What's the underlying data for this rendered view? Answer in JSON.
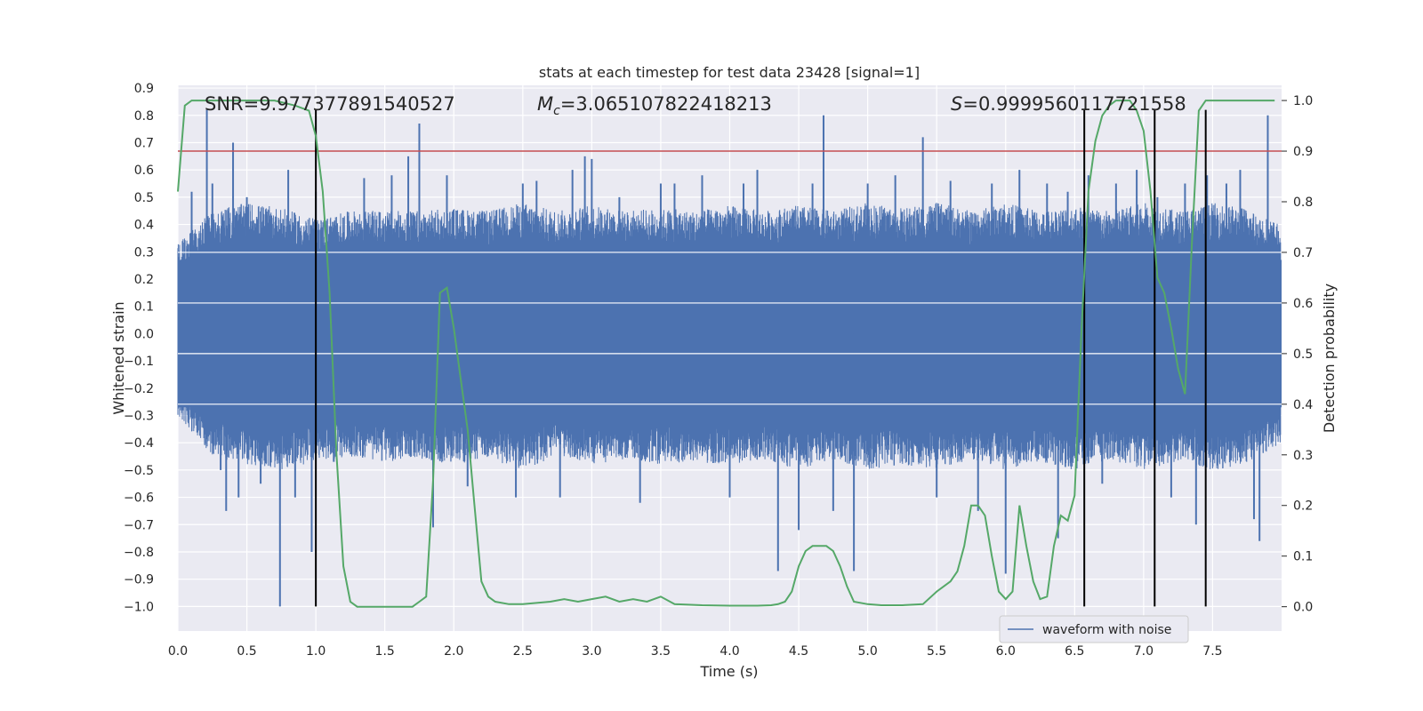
{
  "chart_data": {
    "type": "line",
    "title": "stats at each timestep for test data 23428 [signal=1]",
    "xlabel": "Time (s)",
    "ylabel": "Whitened strain",
    "y2label": "Detection probability",
    "xlim": [
      0.0,
      8.0
    ],
    "ylim": [
      -1.09,
      0.91
    ],
    "y2lim": [
      -0.048,
      1.03
    ],
    "x_ticks": [
      0.0,
      0.5,
      1.0,
      1.5,
      2.0,
      2.5,
      3.0,
      3.5,
      4.0,
      4.5,
      5.0,
      5.5,
      6.0,
      6.5,
      7.0,
      7.5
    ],
    "x_tick_labels": [
      "0.0",
      "0.5",
      "1.0",
      "1.5",
      "2.0",
      "2.5",
      "3.0",
      "3.5",
      "4.0",
      "4.5",
      "5.0",
      "5.5",
      "6.0",
      "6.5",
      "7.0",
      "7.5"
    ],
    "y_ticks": [
      0.9,
      0.8,
      0.7,
      0.6,
      0.5,
      0.4,
      0.3,
      0.2,
      0.1,
      0.0,
      -0.1,
      -0.2,
      -0.3,
      -0.4,
      -0.5,
      -0.6,
      -0.7,
      -0.8,
      -0.9,
      -1.0
    ],
    "y_tick_labels": [
      "0.9",
      "0.8",
      "0.7",
      "0.6",
      "0.5",
      "0.4",
      "0.3",
      "0.2",
      "0.1",
      "0.0",
      "−0.1",
      "−0.2",
      "−0.3",
      "−0.4",
      "−0.5",
      "−0.6",
      "−0.7",
      "−0.8",
      "−0.9",
      "−1.0"
    ],
    "y2_ticks": [
      1.0,
      0.9,
      0.8,
      0.7,
      0.6,
      0.5,
      0.4,
      0.3,
      0.2,
      0.1,
      0.0
    ],
    "y2_tick_labels": [
      "1.0",
      "0.9",
      "0.8",
      "0.7",
      "0.6",
      "0.5",
      "0.4",
      "0.3",
      "0.2",
      "0.1",
      "0.0"
    ],
    "grid": true,
    "legend": {
      "placement": "lower-right",
      "entries": [
        {
          "label": "waveform with noise",
          "color": "#4c72b0"
        }
      ]
    },
    "annotations": {
      "snr": "SNR=9.977377891540527",
      "mc_symbol": "M",
      "mc_sub": "c",
      "mc_value": "=3.065107822418213",
      "s_symbol": "S",
      "s_value": "=0.9999560117721558"
    },
    "threshold": {
      "axis": "y2",
      "value": 0.9,
      "color": "#c44e52"
    },
    "vertical_lines": [
      1.0,
      6.57,
      7.08,
      7.45
    ],
    "vertical_line_range": [
      -1.0,
      0.82
    ],
    "strain_series": {
      "name": "waveform with noise",
      "color": "#4c72b0",
      "envelope": {
        "x": [
          0.0,
          0.25,
          0.5,
          0.75,
          1.0,
          1.25,
          1.5,
          1.75,
          2.0,
          2.25,
          2.5,
          2.75,
          3.0,
          3.25,
          3.5,
          3.75,
          4.0,
          4.25,
          4.5,
          4.75,
          5.0,
          5.25,
          5.5,
          5.75,
          6.0,
          6.25,
          6.5,
          6.75,
          7.0,
          7.25,
          7.5,
          7.75,
          8.0
        ],
        "amp_hi": [
          0.33,
          0.45,
          0.48,
          0.46,
          0.42,
          0.45,
          0.45,
          0.45,
          0.46,
          0.45,
          0.48,
          0.45,
          0.47,
          0.45,
          0.46,
          0.45,
          0.47,
          0.45,
          0.47,
          0.45,
          0.48,
          0.46,
          0.48,
          0.45,
          0.48,
          0.45,
          0.47,
          0.45,
          0.48,
          0.45,
          0.48,
          0.46,
          0.4
        ],
        "amp_lo": [
          -0.3,
          -0.45,
          -0.48,
          -0.5,
          -0.47,
          -0.45,
          -0.47,
          -0.46,
          -0.48,
          -0.46,
          -0.5,
          -0.45,
          -0.48,
          -0.46,
          -0.48,
          -0.47,
          -0.48,
          -0.46,
          -0.5,
          -0.46,
          -0.5,
          -0.48,
          -0.5,
          -0.46,
          -0.5,
          -0.47,
          -0.5,
          -0.46,
          -0.5,
          -0.47,
          -0.5,
          -0.48,
          -0.4
        ]
      },
      "spikes": [
        [
          0.1,
          0.52
        ],
        [
          0.21,
          0.82
        ],
        [
          0.25,
          0.55
        ],
        [
          0.31,
          -0.5
        ],
        [
          0.35,
          -0.65
        ],
        [
          0.4,
          0.7
        ],
        [
          0.44,
          -0.6
        ],
        [
          0.5,
          0.5
        ],
        [
          0.6,
          -0.55
        ],
        [
          0.74,
          -1.0
        ],
        [
          0.8,
          0.6
        ],
        [
          0.85,
          -0.6
        ],
        [
          0.97,
          -0.8
        ],
        [
          1.0,
          0.52
        ],
        [
          1.13,
          -0.47
        ],
        [
          1.35,
          0.57
        ],
        [
          1.55,
          0.58
        ],
        [
          1.67,
          0.65
        ],
        [
          1.75,
          0.77
        ],
        [
          1.85,
          -0.71
        ],
        [
          1.95,
          0.58
        ],
        [
          2.1,
          -0.56
        ],
        [
          2.45,
          -0.6
        ],
        [
          2.5,
          0.55
        ],
        [
          2.6,
          0.56
        ],
        [
          2.77,
          -0.6
        ],
        [
          2.86,
          0.6
        ],
        [
          2.95,
          0.65
        ],
        [
          3.0,
          0.64
        ],
        [
          3.2,
          0.5
        ],
        [
          3.35,
          -0.62
        ],
        [
          3.5,
          0.55
        ],
        [
          3.6,
          0.55
        ],
        [
          3.8,
          0.58
        ],
        [
          4.0,
          -0.6
        ],
        [
          4.1,
          0.55
        ],
        [
          4.2,
          0.6
        ],
        [
          4.35,
          -0.87
        ],
        [
          4.5,
          -0.72
        ],
        [
          4.6,
          0.55
        ],
        [
          4.68,
          0.8
        ],
        [
          4.75,
          -0.65
        ],
        [
          4.9,
          -0.87
        ],
        [
          5.0,
          0.55
        ],
        [
          5.2,
          0.58
        ],
        [
          5.4,
          0.72
        ],
        [
          5.5,
          -0.6
        ],
        [
          5.6,
          0.56
        ],
        [
          5.8,
          -0.65
        ],
        [
          5.9,
          0.55
        ],
        [
          6.0,
          -0.88
        ],
        [
          6.1,
          0.6
        ],
        [
          6.3,
          0.55
        ],
        [
          6.38,
          -0.75
        ],
        [
          6.45,
          0.52
        ],
        [
          6.6,
          0.58
        ],
        [
          6.7,
          -0.55
        ],
        [
          6.8,
          0.55
        ],
        [
          6.95,
          0.6
        ],
        [
          7.1,
          0.5
        ],
        [
          7.2,
          -0.6
        ],
        [
          7.3,
          0.55
        ],
        [
          7.38,
          -0.7
        ],
        [
          7.46,
          0.58
        ],
        [
          7.6,
          0.55
        ],
        [
          7.7,
          0.6
        ],
        [
          7.8,
          -0.68
        ],
        [
          7.84,
          -0.76
        ],
        [
          7.9,
          0.8
        ]
      ]
    },
    "probability_series": {
      "name": "detection probability",
      "axis": "y2",
      "color": "#55a868",
      "x": [
        0.0,
        0.05,
        0.1,
        0.2,
        0.3,
        0.5,
        0.7,
        0.85,
        0.95,
        1.0,
        1.05,
        1.1,
        1.15,
        1.2,
        1.25,
        1.3,
        1.5,
        1.7,
        1.75,
        1.8,
        1.85,
        1.9,
        1.95,
        2.0,
        2.05,
        2.1,
        2.15,
        2.2,
        2.25,
        2.3,
        2.4,
        2.5,
        2.7,
        2.8,
        2.9,
        3.0,
        3.1,
        3.2,
        3.3,
        3.4,
        3.5,
        3.6,
        3.8,
        4.0,
        4.2,
        4.3,
        4.35,
        4.4,
        4.45,
        4.5,
        4.55,
        4.6,
        4.7,
        4.75,
        4.8,
        4.85,
        4.9,
        5.0,
        5.1,
        5.25,
        5.4,
        5.5,
        5.55,
        5.6,
        5.65,
        5.7,
        5.75,
        5.8,
        5.85,
        5.9,
        5.95,
        6.0,
        6.05,
        6.1,
        6.15,
        6.2,
        6.25,
        6.3,
        6.35,
        6.4,
        6.45,
        6.5,
        6.55,
        6.6,
        6.65,
        6.7,
        6.75,
        6.8,
        6.85,
        6.9,
        6.95,
        7.0,
        7.05,
        7.1,
        7.15,
        7.2,
        7.25,
        7.3,
        7.35,
        7.4,
        7.45,
        7.5,
        7.55,
        7.6,
        7.65,
        7.7,
        7.75,
        7.8,
        7.85,
        7.9,
        7.95
      ],
      "y": [
        0.82,
        0.99,
        1.0,
        1.0,
        1.0,
        1.0,
        1.0,
        0.99,
        0.98,
        0.93,
        0.82,
        0.62,
        0.3,
        0.08,
        0.01,
        0.0,
        0.0,
        0.0,
        0.01,
        0.02,
        0.25,
        0.62,
        0.63,
        0.55,
        0.45,
        0.35,
        0.2,
        0.05,
        0.02,
        0.01,
        0.005,
        0.005,
        0.01,
        0.015,
        0.01,
        0.015,
        0.02,
        0.01,
        0.015,
        0.01,
        0.02,
        0.005,
        0.003,
        0.002,
        0.002,
        0.003,
        0.005,
        0.01,
        0.03,
        0.08,
        0.11,
        0.12,
        0.12,
        0.11,
        0.08,
        0.04,
        0.01,
        0.005,
        0.003,
        0.003,
        0.005,
        0.03,
        0.04,
        0.05,
        0.07,
        0.12,
        0.2,
        0.2,
        0.18,
        0.1,
        0.03,
        0.015,
        0.03,
        0.2,
        0.12,
        0.05,
        0.015,
        0.02,
        0.12,
        0.18,
        0.17,
        0.22,
        0.55,
        0.82,
        0.92,
        0.97,
        0.99,
        1.0,
        1.0,
        1.0,
        0.98,
        0.94,
        0.82,
        0.65,
        0.62,
        0.55,
        0.47,
        0.42,
        0.72,
        0.98,
        1.0,
        1.0,
        1.0,
        1.0,
        1.0,
        1.0,
        1.0,
        1.0,
        1.0,
        1.0,
        1.0
      ]
    }
  }
}
